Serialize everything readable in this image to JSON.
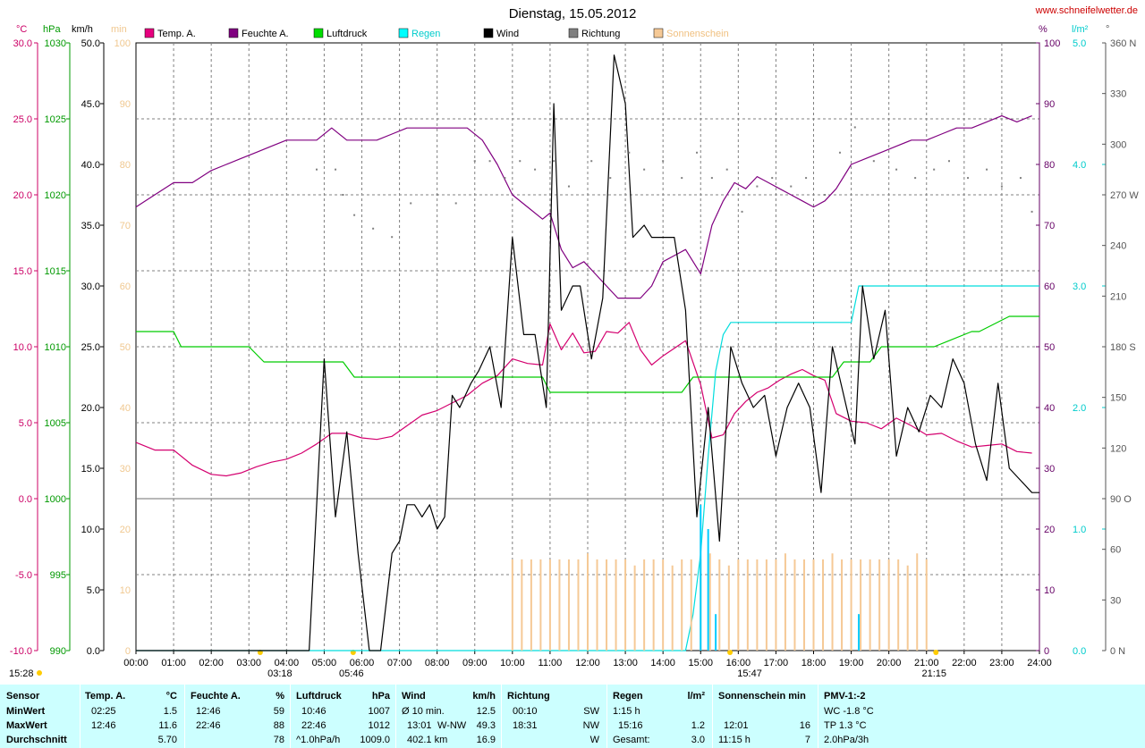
{
  "chart_data": {
    "type": "line",
    "title": "Dienstag, 15.05.2012",
    "site": "www.schneifelwetter.de",
    "grid": true,
    "x_ticks": [
      "00:00",
      "01:00",
      "02:00",
      "03:00",
      "04:00",
      "05:00",
      "06:00",
      "07:00",
      "08:00",
      "09:00",
      "10:00",
      "11:00",
      "12:00",
      "13:00",
      "14:00",
      "15:00",
      "16:00",
      "17:00",
      "18:00",
      "19:00",
      "20:00",
      "21:00",
      "22:00",
      "23:00",
      "24:00"
    ],
    "x_markers": [
      "03:18",
      "05:46",
      "15:47",
      "21:15"
    ],
    "axes": {
      "temp": {
        "unit": "°C",
        "ticks": [
          "30.0",
          "25.0",
          "20.0",
          "15.0",
          "10.0",
          "5.0",
          "0.0",
          "-5.0",
          "-10.0"
        ],
        "range": [
          -10,
          30
        ],
        "color": "#cc0066"
      },
      "press": {
        "unit": "hPa",
        "ticks": [
          "1030",
          "1025",
          "1020",
          "1015",
          "1010",
          "1005",
          "1000",
          "995",
          "990"
        ],
        "range": [
          990,
          1030
        ],
        "color": "#009900"
      },
      "wind": {
        "unit": "km/h",
        "ticks": [
          "50.0",
          "45.0",
          "40.0",
          "35.0",
          "30.0",
          "25.0",
          "20.0",
          "15.0",
          "10.0",
          "5.0",
          "0.0"
        ],
        "range": [
          0,
          50
        ],
        "color": "#000000"
      },
      "sun": {
        "unit": "min",
        "ticks": [
          "100",
          "90",
          "80",
          "70",
          "60",
          "50",
          "40",
          "30",
          "20",
          "10",
          "0"
        ],
        "range": [
          0,
          100
        ],
        "color": "#f0c890"
      },
      "hum": {
        "unit": "%",
        "ticks": [
          "100",
          "90",
          "80",
          "70",
          "60",
          "50",
          "40",
          "30",
          "20",
          "10",
          "0"
        ],
        "range": [
          0,
          100
        ],
        "color": "#660066"
      },
      "rain": {
        "unit": "l/m²",
        "ticks": [
          "5.0",
          "4.0",
          "3.0",
          "2.0",
          "1.0",
          "0.0"
        ],
        "range": [
          0,
          5
        ],
        "color": "#00cccc"
      },
      "dir": {
        "unit": "°",
        "ticks": [
          "360 N",
          "330",
          "300",
          "270 W",
          "240",
          "210",
          "180 S",
          "150",
          "120",
          "90  O",
          "60",
          "30",
          "0  N"
        ],
        "range": [
          0,
          360
        ],
        "color": "#555555"
      }
    },
    "legend": [
      {
        "label": "Temp. A.",
        "color": "#e6007e"
      },
      {
        "label": "Feuchte A.",
        "color": "#800080"
      },
      {
        "label": "Luftdruck",
        "color": "#00dd00"
      },
      {
        "label": "Regen",
        "color": "#00ffff"
      },
      {
        "label": "Wind",
        "color": "#000000"
      },
      {
        "label": "Richtung",
        "color": "#808080"
      },
      {
        "label": "Sonnenschein",
        "color": "#f5c996"
      }
    ],
    "series": [
      {
        "name": "Temp. A.",
        "axis": "temp",
        "x": [
          0,
          0.5,
          1,
          1.5,
          2,
          2.4,
          2.8,
          3.2,
          3.6,
          4,
          4.4,
          4.8,
          5.2,
          5.6,
          6,
          6.4,
          6.8,
          7.2,
          7.6,
          8,
          8.4,
          8.8,
          9.2,
          9.6,
          10,
          10.4,
          10.8,
          11,
          11.3,
          11.6,
          11.9,
          12.2,
          12.5,
          12.8,
          13.1,
          13.4,
          13.7,
          14,
          14.3,
          14.6,
          15,
          15.3,
          15.6,
          15.9,
          16.2,
          16.5,
          16.8,
          17.1,
          17.4,
          17.7,
          18,
          18.3,
          18.6,
          19,
          19.4,
          19.8,
          20.2,
          20.6,
          21,
          21.4,
          21.8,
          22.2,
          22.6,
          23,
          23.4,
          23.8
        ],
        "y": [
          3.7,
          3.2,
          3.2,
          2.2,
          1.6,
          1.5,
          1.7,
          2.1,
          2.4,
          2.6,
          3.0,
          3.6,
          4.3,
          4.3,
          4.0,
          3.9,
          4.1,
          4.8,
          5.5,
          5.8,
          6.3,
          6.8,
          7.6,
          8.1,
          9.2,
          8.9,
          8.8,
          11.5,
          9.8,
          10.9,
          9.6,
          9.7,
          11.0,
          10.9,
          11.6,
          9.8,
          8.8,
          9.4,
          9.9,
          10.4,
          7.5,
          4.0,
          4.2,
          5.6,
          6.4,
          7.0,
          7.3,
          7.8,
          8.2,
          8.5,
          8.1,
          7.8,
          5.6,
          5.1,
          5.0,
          4.6,
          5.3,
          4.8,
          4.2,
          4.3,
          3.8,
          3.4,
          3.5,
          3.6,
          3.1,
          3.0
        ]
      },
      {
        "name": "Feuchte A.",
        "axis": "hum",
        "x": [
          0,
          0.5,
          1,
          1.5,
          2,
          2.4,
          2.8,
          3.2,
          3.6,
          4,
          4.4,
          4.8,
          5.2,
          5.6,
          6,
          6.4,
          6.8,
          7.2,
          7.6,
          8,
          8.4,
          8.8,
          9.2,
          9.6,
          10,
          10.4,
          10.8,
          11,
          11.3,
          11.6,
          11.9,
          12.2,
          12.5,
          12.8,
          13.1,
          13.4,
          13.7,
          14,
          14.3,
          14.6,
          15,
          15.3,
          15.6,
          15.9,
          16.2,
          16.5,
          16.8,
          17.1,
          17.4,
          17.7,
          18,
          18.3,
          18.6,
          19,
          19.4,
          19.8,
          20.2,
          20.6,
          21,
          21.4,
          21.8,
          22.2,
          22.6,
          23,
          23.4,
          23.8
        ],
        "y": [
          73,
          75,
          77,
          77,
          79,
          80,
          81,
          82,
          83,
          84,
          84,
          84,
          86,
          84,
          84,
          84,
          85,
          86,
          86,
          86,
          86,
          86,
          84,
          80,
          75,
          73,
          71,
          72,
          66,
          63,
          64,
          62,
          60,
          58,
          58,
          58,
          60,
          64,
          65,
          66,
          62,
          70,
          74,
          77,
          76,
          78,
          77,
          76,
          75,
          74,
          73,
          74,
          76,
          80,
          81,
          82,
          83,
          84,
          84,
          85,
          86,
          86,
          87,
          88,
          87,
          88
        ]
      },
      {
        "name": "Luftdruck",
        "axis": "press",
        "x": [
          0,
          1,
          1.2,
          3,
          3.4,
          5.5,
          5.8,
          9.5,
          10.8,
          11,
          14.5,
          14.8,
          18.5,
          18.8,
          19.5,
          19.8,
          21,
          21.2,
          22.2,
          22.4,
          23.2,
          23.4,
          24
        ],
        "y": [
          1011,
          1011,
          1010,
          1010,
          1009,
          1009,
          1008,
          1008,
          1008,
          1007,
          1007,
          1008,
          1008,
          1009,
          1009,
          1010,
          1010,
          1010,
          1011,
          1011,
          1012,
          1012,
          1012
        ]
      },
      {
        "name": "Regen",
        "axis": "rain",
        "x": [
          0,
          14.6,
          14.8,
          15.0,
          15.2,
          15.4,
          15.6,
          15.8,
          16.0,
          19.0,
          19.2,
          19.4,
          24
        ],
        "y": [
          0,
          0,
          0.3,
          0.8,
          1.6,
          2.3,
          2.6,
          2.7,
          2.7,
          2.7,
          3.0,
          3.0,
          3.0
        ]
      },
      {
        "name": "Wind",
        "axis": "wind",
        "x": [
          0,
          4.6,
          5.0,
          5.3,
          5.6,
          5.9,
          6.2,
          6.5,
          6.8,
          7.0,
          7.2,
          7.4,
          7.6,
          7.8,
          8.0,
          8.2,
          8.4,
          8.6,
          8.9,
          9.1,
          9.4,
          9.7,
          10.0,
          10.3,
          10.6,
          10.9,
          11.1,
          11.3,
          11.6,
          11.8,
          12.1,
          12.4,
          12.7,
          13.0,
          13.2,
          13.5,
          13.7,
          14.0,
          14.3,
          14.6,
          14.9,
          15.2,
          15.5,
          15.8,
          16.1,
          16.4,
          16.7,
          17.0,
          17.3,
          17.6,
          17.9,
          18.2,
          18.5,
          18.8,
          19.1,
          19.3,
          19.6,
          19.9,
          20.2,
          20.5,
          20.8,
          21.1,
          21.4,
          21.7,
          22.0,
          22.3,
          22.6,
          22.9,
          23.2,
          23.5,
          23.8,
          24.0
        ],
        "y": [
          0,
          0,
          24,
          11,
          18,
          8,
          0,
          0,
          8,
          9,
          12,
          12,
          11,
          12,
          10,
          11,
          21,
          20,
          22,
          23,
          25,
          20,
          34,
          26,
          26,
          20,
          45,
          28,
          30,
          30,
          24,
          29,
          49,
          45,
          34,
          35,
          34,
          34,
          34,
          28,
          11,
          20,
          9,
          25,
          22,
          20,
          21,
          16,
          20,
          22,
          20,
          13,
          25,
          21,
          17,
          30,
          24,
          28,
          16,
          20,
          18,
          21,
          20,
          24,
          22,
          17,
          14,
          22,
          15,
          14,
          13,
          13
        ]
      },
      {
        "name": "Richtung",
        "axis": "dir",
        "x": [
          4.8,
          5.3,
          5.5,
          5.8,
          6.3,
          6.8,
          7.3,
          8.0,
          8.5,
          9.0,
          9.4,
          9.8,
          10.2,
          10.6,
          11.1,
          11.5,
          12.1,
          12.6,
          13.1,
          13.5,
          14.0,
          14.5,
          14.9,
          15.3,
          15.7,
          16.1,
          16.5,
          16.9,
          17.4,
          17.8,
          18.3,
          18.7,
          19.1,
          19.6,
          20.2,
          20.7,
          21.2,
          21.6,
          22.1,
          22.6,
          23.0,
          23.5,
          23.8
        ],
        "y": [
          285,
          285,
          270,
          258,
          250,
          245,
          265,
          270,
          265,
          290,
          290,
          280,
          290,
          285,
          290,
          275,
          290,
          280,
          295,
          285,
          290,
          280,
          295,
          280,
          285,
          260,
          275,
          280,
          275,
          280,
          270,
          295,
          310,
          290,
          285,
          280,
          285,
          290,
          280,
          285,
          275,
          280,
          260
        ]
      },
      {
        "name": "Sonnenschein",
        "axis": "sun",
        "x": [
          10.0,
          10.25,
          10.5,
          10.75,
          11.0,
          11.25,
          11.5,
          11.75,
          12.0,
          12.25,
          12.5,
          12.75,
          13.0,
          13.25,
          13.5,
          13.75,
          14.0,
          14.25,
          14.5,
          14.75,
          15.0,
          15.25,
          15.5,
          15.75,
          16.0,
          16.25,
          16.5,
          16.75,
          17.0,
          17.25,
          17.5,
          17.75,
          18.0,
          18.25,
          18.5,
          18.75,
          19.0,
          19.25,
          19.5,
          19.75,
          20.0,
          20.25,
          20.5,
          20.75,
          21.0
        ],
        "y": [
          15,
          15,
          15,
          15,
          15,
          15,
          15,
          15,
          16,
          15,
          15,
          15,
          15,
          14,
          15,
          15,
          15,
          14,
          15,
          15,
          15,
          16,
          15,
          14,
          15,
          15,
          15,
          15,
          15,
          16,
          15,
          15,
          15,
          15,
          16,
          15,
          15,
          15,
          15,
          15,
          15,
          15,
          14,
          16,
          15
        ]
      },
      {
        "name": "Regen 10 min",
        "axis": "rain",
        "x": [
          15.0,
          15.2,
          15.4,
          19.2
        ],
        "y": [
          1.2,
          1.0,
          0.3,
          0.3
        ]
      }
    ]
  },
  "summary": {
    "headers": {
      "sensor": "Sensor",
      "temp": "Temp. A.",
      "temp_unit": "°C",
      "hum": "Feuchte A.",
      "hum_unit": "%",
      "press": "Luftdruck",
      "press_unit": "hPa",
      "wind": "Wind",
      "wind_unit": "km/h",
      "dir": "Richtung",
      "rain": "Regen",
      "rain_unit": "l/m²",
      "sun": "Sonnenschein min",
      "pmv": "PMV-1:-2"
    },
    "row_labels": [
      "MinWert",
      "MaxWert",
      "Durchschnitt"
    ],
    "temp": [
      [
        "02:25",
        "1.5"
      ],
      [
        "12:46",
        "11.6"
      ],
      [
        "",
        "5.70"
      ]
    ],
    "hum": [
      [
        "12:46",
        "59"
      ],
      [
        "22:46",
        "88"
      ],
      [
        "",
        "78"
      ]
    ],
    "press": [
      [
        "10:46",
        "1007"
      ],
      [
        "22:46",
        "1012"
      ],
      [
        "^1.0hPa/h",
        "1009.0"
      ]
    ],
    "wind": [
      [
        "Ø 10 min.",
        "",
        "12.5"
      ],
      [
        "13:01",
        "W-NW",
        "49.3"
      ],
      [
        "402.1 km",
        "",
        "16.9"
      ]
    ],
    "dir": [
      [
        "00:10",
        "SW"
      ],
      [
        "18:31",
        "NW"
      ],
      [
        "",
        "W"
      ]
    ],
    "rain": [
      [
        "1:15 h",
        ""
      ],
      [
        "15:16",
        "1.2"
      ],
      [
        "Gesamt:",
        "3.0"
      ]
    ],
    "sun": [
      [
        "",
        ""
      ],
      [
        "12:01",
        "16"
      ],
      [
        "11:15 h",
        "7"
      ]
    ],
    "pmv": [
      "WC -1.8 °C",
      "TP 1.3 °C",
      "2.0hPa/3h"
    ]
  },
  "corner": {
    "time": "15:28"
  }
}
